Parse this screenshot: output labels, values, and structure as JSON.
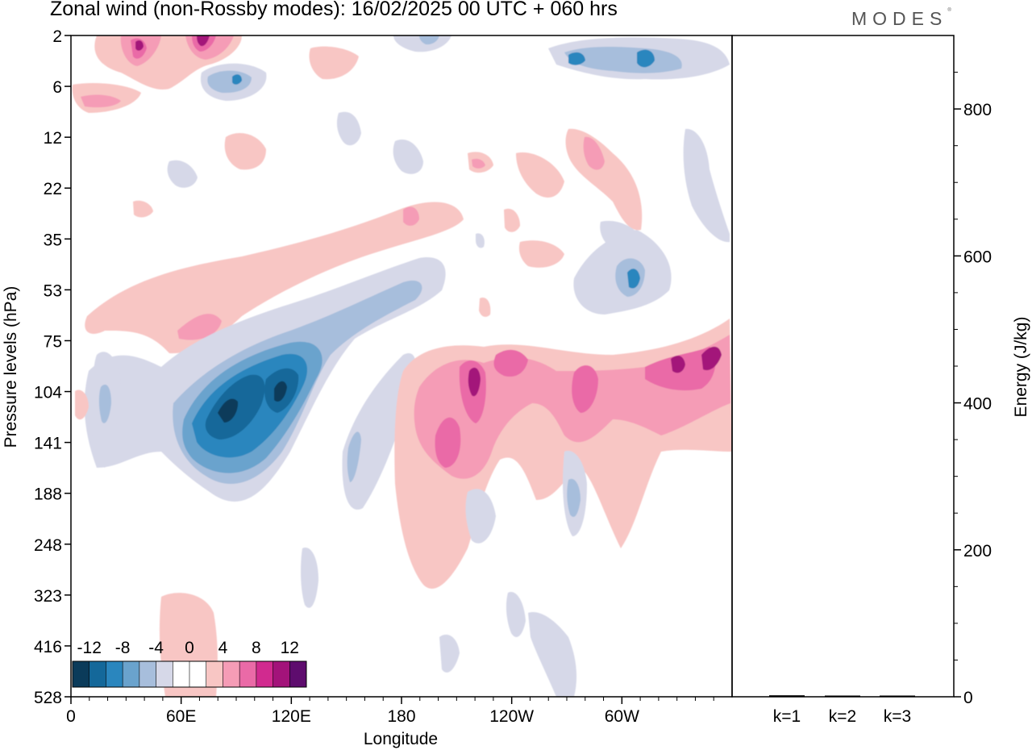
{
  "figure": {
    "title": "Zonal wind (non-Rossby modes):  16/02/2025  00 UTC  + 060 hrs",
    "brand": "MODES",
    "brand_mark": "®"
  },
  "chart_data": [
    {
      "type": "heatmap",
      "variable": "Zonal wind",
      "xlabel": "Longitude",
      "ylabel": "Pressure levels (hPa)",
      "x_tick_labels": [
        "0",
        "60E",
        "120E",
        "180",
        "120W",
        "60W"
      ],
      "y_tick_labels": [
        "2",
        "6",
        "12",
        "22",
        "35",
        "53",
        "75",
        "104",
        "141",
        "188",
        "248",
        "323",
        "416",
        "528"
      ],
      "colorbar": {
        "labels": [
          "-12",
          "-8",
          "-4",
          "0",
          "4",
          "8",
          "12"
        ],
        "colors": [
          "#0b3b5a",
          "#14689a",
          "#2a86be",
          "#6aa3cd",
          "#a7bedc",
          "#d6d8e8",
          "#ffffff",
          "#ffffff",
          "#f8c6c4",
          "#f59cb6",
          "#ea6aa7",
          "#d12a8f",
          "#a3137a",
          "#5e0c6e"
        ]
      },
      "features": [
        {
          "lon": 70,
          "level": 110,
          "value": -12
        },
        {
          "lon": 105,
          "level": 108,
          "value": -12
        },
        {
          "lon": 50,
          "level": 135,
          "value": -8
        },
        {
          "lon": 145,
          "level": 150,
          "value": -6
        },
        {
          "lon": 160,
          "level": 55,
          "value": -4
        },
        {
          "lon": 290,
          "level": 50,
          "value": -6
        },
        {
          "lon": 290,
          "level": 3,
          "value": -6
        },
        {
          "lon": 82,
          "level": 5,
          "value": -6
        },
        {
          "lon": 205,
          "level": 140,
          "value": 8
        },
        {
          "lon": 213,
          "level": 100,
          "value": 12
        },
        {
          "lon": 228,
          "level": 90,
          "value": 8
        },
        {
          "lon": 262,
          "level": 105,
          "value": 8
        },
        {
          "lon": 330,
          "level": 92,
          "value": 10
        },
        {
          "lon": 70,
          "level": 2,
          "value": 12
        },
        {
          "lon": 35,
          "level": 3,
          "value": 10
        },
        {
          "lon": 60,
          "level": 60,
          "value": 4
        },
        {
          "lon": 265,
          "level": 15,
          "value": 6
        }
      ]
    },
    {
      "type": "bar",
      "categories": [
        "k=1",
        "k=2",
        "k=3"
      ],
      "values": [
        2,
        1,
        1
      ],
      "ylabel": "Energy (J/kg)",
      "ylim": [
        0,
        900
      ],
      "y_tick_labels": [
        "0",
        "200",
        "400",
        "600",
        "800"
      ]
    }
  ]
}
